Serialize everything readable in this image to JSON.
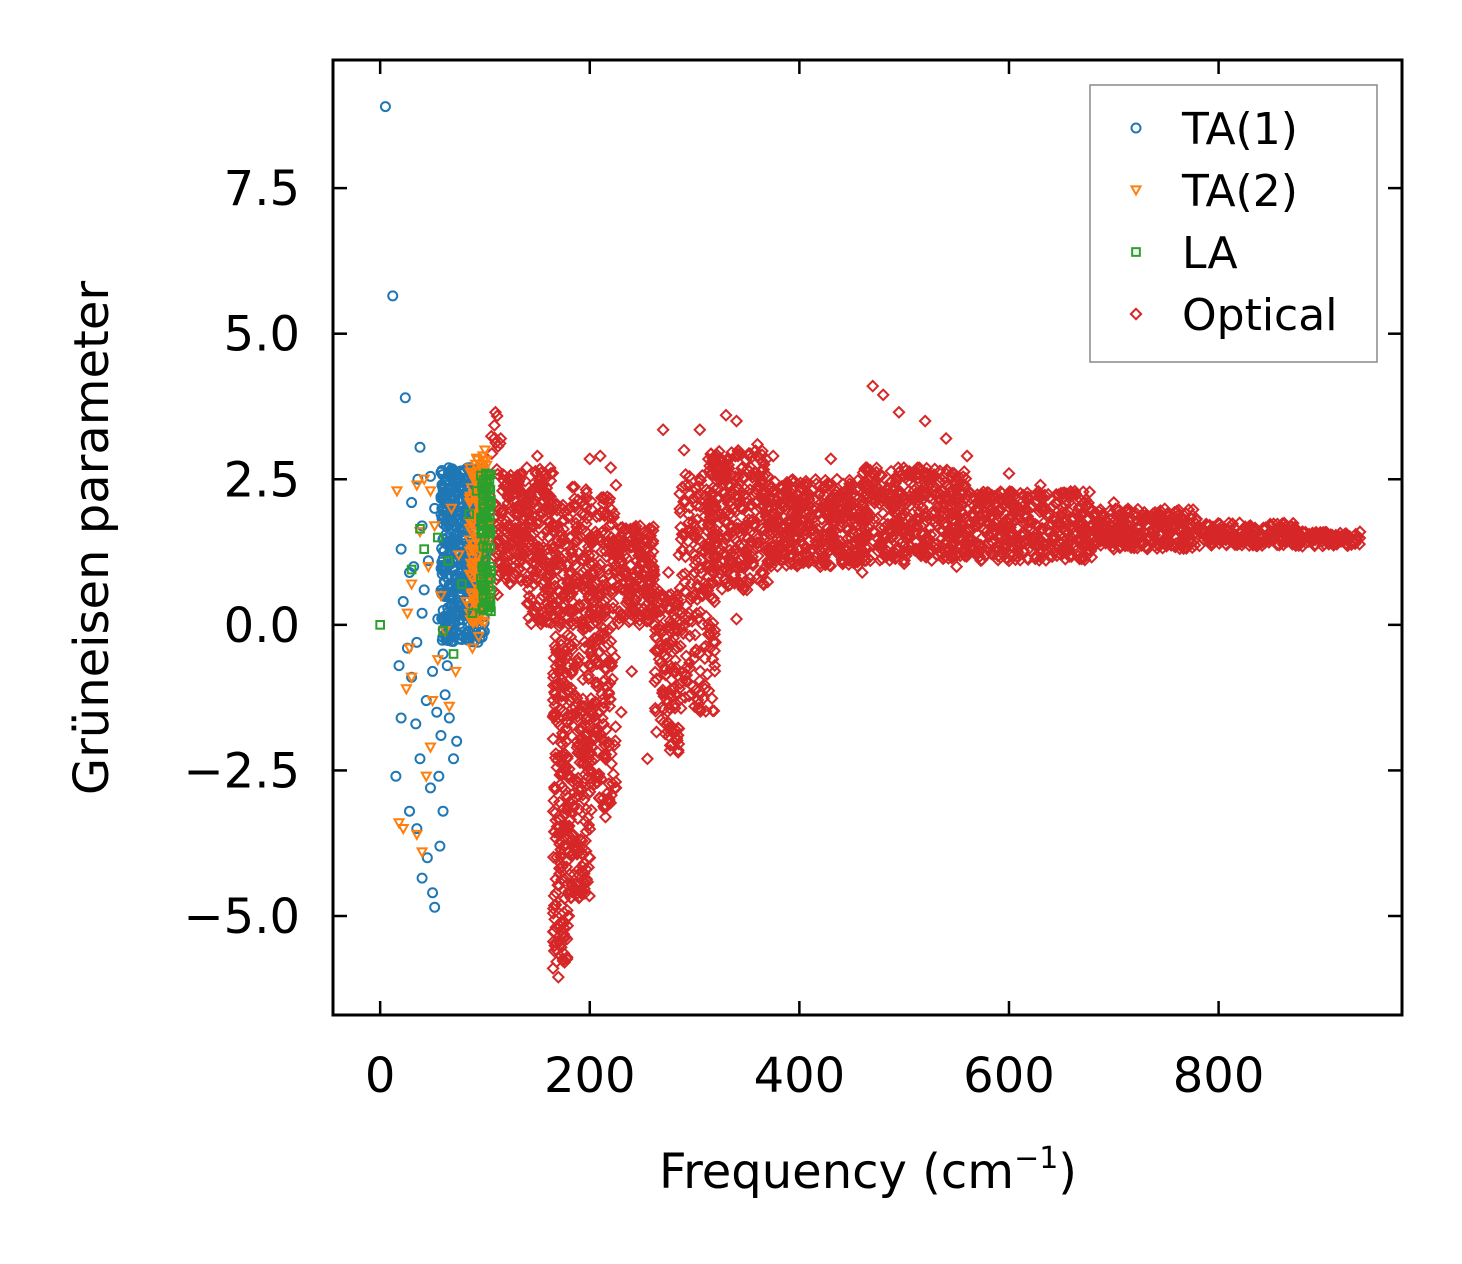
{
  "chart_data": {
    "type": "scatter",
    "xlabel": "Frequency (cm",
    "xlabel_sup": "−1",
    "xlabel_close": ")",
    "ylabel": "Grüneisen parameter",
    "xlim": [
      -45,
      975
    ],
    "ylim": [
      -6.7,
      9.7
    ],
    "xticks": [
      0,
      200,
      400,
      600,
      800
    ],
    "xtick_labels": [
      "0",
      "200",
      "400",
      "600",
      "800"
    ],
    "yticks": [
      -5.0,
      -2.5,
      0.0,
      2.5,
      5.0,
      7.5
    ],
    "ytick_labels": [
      "−5.0",
      "−2.5",
      "0.0",
      "2.5",
      "5.0",
      "7.5"
    ],
    "legend_position": "upper right",
    "series": [
      {
        "name": "TA(1)",
        "marker": "circle",
        "color": "#1f77b4",
        "points": [
          [
            5,
            8.9
          ],
          [
            12,
            5.65
          ],
          [
            24,
            3.9
          ],
          [
            38,
            3.05
          ],
          [
            20,
            1.3
          ],
          [
            22,
            0.4
          ],
          [
            18,
            -0.7
          ],
          [
            20,
            -1.6
          ],
          [
            15,
            -2.6
          ],
          [
            28,
            -3.2
          ],
          [
            35,
            -3.5
          ],
          [
            45,
            -4.0
          ],
          [
            50,
            -4.6
          ],
          [
            52,
            -4.85
          ],
          [
            40,
            -4.35
          ],
          [
            30,
            2.1
          ],
          [
            36,
            2.5
          ],
          [
            48,
            2.55
          ],
          [
            40,
            1.7
          ],
          [
            32,
            1.0
          ],
          [
            42,
            0.6
          ],
          [
            55,
            0.1
          ],
          [
            60,
            -0.5
          ],
          [
            62,
            -1.2
          ],
          [
            58,
            -1.9
          ],
          [
            56,
            -2.6
          ],
          [
            60,
            -3.2
          ],
          [
            57,
            -3.8
          ],
          [
            48,
            -2.8
          ],
          [
            38,
            -2.3
          ],
          [
            34,
            -1.7
          ],
          [
            30,
            -0.9
          ],
          [
            26,
            -0.4
          ],
          [
            44,
            -1.3
          ],
          [
            50,
            -0.8
          ],
          [
            66,
            -1.6
          ],
          [
            70,
            -2.3
          ],
          [
            73,
            -2.0
          ],
          [
            68,
            1.9
          ],
          [
            72,
            2.3
          ],
          [
            78,
            2.6
          ],
          [
            85,
            2.7
          ],
          [
            90,
            2.4
          ],
          [
            95,
            2.6
          ],
          [
            80,
            1.5
          ],
          [
            75,
            0.5
          ],
          [
            65,
            0.8
          ],
          [
            62,
            1.4
          ],
          [
            58,
            2.2
          ],
          [
            52,
            2.0
          ],
          [
            46,
            1.1
          ],
          [
            40,
            0.2
          ],
          [
            35,
            -0.3
          ],
          [
            54,
            -1.5
          ],
          [
            64,
            -0.7
          ],
          [
            28,
            0.9
          ]
        ],
        "dense_region": {
          "x": [
            58,
            100
          ],
          "y_min": -0.3,
          "y_max": 2.7,
          "count": 500
        }
      },
      {
        "name": "TA(2)",
        "marker": "triangle_down",
        "color": "#ff7f0e",
        "points": [
          [
            16,
            2.3
          ],
          [
            35,
            2.4
          ],
          [
            42,
            2.5
          ],
          [
            48,
            2.3
          ],
          [
            38,
            1.6
          ],
          [
            30,
            0.7
          ],
          [
            26,
            0.2
          ],
          [
            28,
            -0.4
          ],
          [
            30,
            -0.9
          ],
          [
            25,
            -1.1
          ],
          [
            18,
            -3.4
          ],
          [
            22,
            -3.5
          ],
          [
            35,
            -3.6
          ],
          [
            40,
            -3.9
          ],
          [
            44,
            -2.6
          ],
          [
            48,
            -2.1
          ],
          [
            50,
            -1.3
          ],
          [
            55,
            -0.6
          ],
          [
            62,
            -0.1
          ],
          [
            58,
            0.5
          ],
          [
            46,
            1.0
          ],
          [
            52,
            1.7
          ],
          [
            68,
            2.0
          ],
          [
            75,
            1.2
          ],
          [
            82,
            0.4
          ],
          [
            88,
            -0.4
          ],
          [
            94,
            -0.2
          ],
          [
            98,
            2.9
          ],
          [
            100,
            3.0
          ],
          [
            90,
            2.5
          ],
          [
            72,
            -0.8
          ],
          [
            66,
            -1.4
          ]
        ],
        "dense_region": {
          "x": [
            85,
            103
          ],
          "y_min": 0.0,
          "y_max": 2.9,
          "count": 140
        }
      },
      {
        "name": "LA",
        "marker": "square",
        "color": "#2ca02c",
        "points": [
          [
            0,
            0.0
          ],
          [
            38,
            1.65
          ],
          [
            30,
            0.95
          ],
          [
            42,
            1.3
          ],
          [
            55,
            1.5
          ],
          [
            60,
            -0.1
          ],
          [
            70,
            -0.5
          ],
          [
            78,
            0.7
          ],
          [
            85,
            1.9
          ],
          [
            92,
            2.3
          ],
          [
            102,
            2.5
          ],
          [
            105,
            1.0
          ],
          [
            104,
            0.3
          ],
          [
            98,
            1.6
          ],
          [
            88,
            0.2
          ],
          [
            65,
            1.1
          ]
        ],
        "dense_region": {
          "x": [
            96,
            106
          ],
          "y_min": 0.2,
          "y_max": 2.6,
          "count": 90
        }
      },
      {
        "name": "Optical",
        "marker": "diamond",
        "color": "#d62728",
        "points": [
          [
            110,
            3.65
          ],
          [
            140,
            2.7
          ],
          [
            150,
            2.9
          ],
          [
            200,
            2.85
          ],
          [
            210,
            2.9
          ],
          [
            220,
            2.7
          ],
          [
            225,
            2.4
          ],
          [
            248,
            1.7
          ],
          [
            260,
            1.4
          ],
          [
            240,
            -0.8
          ],
          [
            230,
            -1.5
          ],
          [
            165,
            -5.9
          ],
          [
            170,
            -6.05
          ],
          [
            180,
            -5.0
          ],
          [
            190,
            -4.3
          ],
          [
            200,
            -4.0
          ],
          [
            215,
            -3.3
          ],
          [
            225,
            -2.8
          ],
          [
            205,
            -2.3
          ],
          [
            195,
            -1.9
          ],
          [
            255,
            -2.3
          ],
          [
            280,
            -1.1
          ],
          [
            300,
            -1.4
          ],
          [
            310,
            -1.1
          ],
          [
            315,
            -0.4
          ],
          [
            270,
            3.35
          ],
          [
            290,
            3.0
          ],
          [
            305,
            3.35
          ],
          [
            330,
            3.6
          ],
          [
            340,
            3.5
          ],
          [
            360,
            3.1
          ],
          [
            375,
            2.9
          ],
          [
            300,
            1.6
          ],
          [
            430,
            2.85
          ],
          [
            470,
            4.1
          ],
          [
            480,
            3.95
          ],
          [
            495,
            3.65
          ],
          [
            520,
            3.5
          ],
          [
            540,
            3.2
          ],
          [
            560,
            2.9
          ],
          [
            600,
            2.6
          ],
          [
            630,
            2.4
          ],
          [
            655,
            2.25
          ],
          [
            700,
            2.1
          ],
          [
            760,
            1.95
          ],
          [
            820,
            1.75
          ],
          [
            880,
            1.6
          ],
          [
            930,
            1.4
          ],
          [
            880,
            1.35
          ],
          [
            820,
            1.4
          ],
          [
            760,
            1.5
          ],
          [
            700,
            1.3
          ],
          [
            650,
            1.2
          ],
          [
            600,
            1.1
          ],
          [
            550,
            1.0
          ],
          [
            500,
            1.05
          ],
          [
            460,
            0.9
          ],
          [
            420,
            1.0
          ],
          [
            380,
            1.2
          ],
          [
            350,
            0.6
          ],
          [
            340,
            0.1
          ],
          [
            320,
            -0.3
          ],
          [
            290,
            0.0
          ],
          [
            275,
            0.9
          ],
          [
            300,
            0.9
          ]
        ],
        "dense_region": [
          {
            "x": [
              104,
              116
            ],
            "y_min": 0.5,
            "y_max": 3.6,
            "count": 40
          },
          {
            "x": [
              116,
              140
            ],
            "y_min": 0.7,
            "y_max": 2.6,
            "count": 140
          },
          {
            "x": [
              140,
              165
            ],
            "y_min": 0.0,
            "y_max": 2.7,
            "count": 160
          },
          {
            "x": [
              165,
              180
            ],
            "y_min": -5.8,
            "y_max": 2.3,
            "count": 260
          },
          {
            "x": [
              180,
              200
            ],
            "y_min": -4.7,
            "y_max": 2.4,
            "count": 260
          },
          {
            "x": [
              200,
              225
            ],
            "y_min": -3.2,
            "y_max": 2.2,
            "count": 240
          },
          {
            "x": [
              225,
              262
            ],
            "y_min": 0.0,
            "y_max": 1.7,
            "count": 180
          },
          {
            "x": [
              262,
              285
            ],
            "y_min": -2.2,
            "y_max": 0.6,
            "count": 120
          },
          {
            "x": [
              285,
              320
            ],
            "y_min": -1.5,
            "y_max": 2.6,
            "count": 170
          },
          {
            "x": [
              310,
              370
            ],
            "y_min": 0.6,
            "y_max": 3.0,
            "count": 320
          },
          {
            "x": [
              370,
              460
            ],
            "y_min": 1.0,
            "y_max": 2.5,
            "count": 420
          },
          {
            "x": [
              460,
              560
            ],
            "y_min": 1.1,
            "y_max": 2.7,
            "count": 440
          },
          {
            "x": [
              560,
              680
            ],
            "y_min": 1.1,
            "y_max": 2.3,
            "count": 420
          },
          {
            "x": [
              680,
              780
            ],
            "y_min": 1.3,
            "y_max": 2.0,
            "count": 280
          },
          {
            "x": [
              780,
              880
            ],
            "y_min": 1.35,
            "y_max": 1.75,
            "count": 200
          },
          {
            "x": [
              880,
              935
            ],
            "y_min": 1.35,
            "y_max": 1.6,
            "count": 90
          }
        ]
      }
    ]
  }
}
